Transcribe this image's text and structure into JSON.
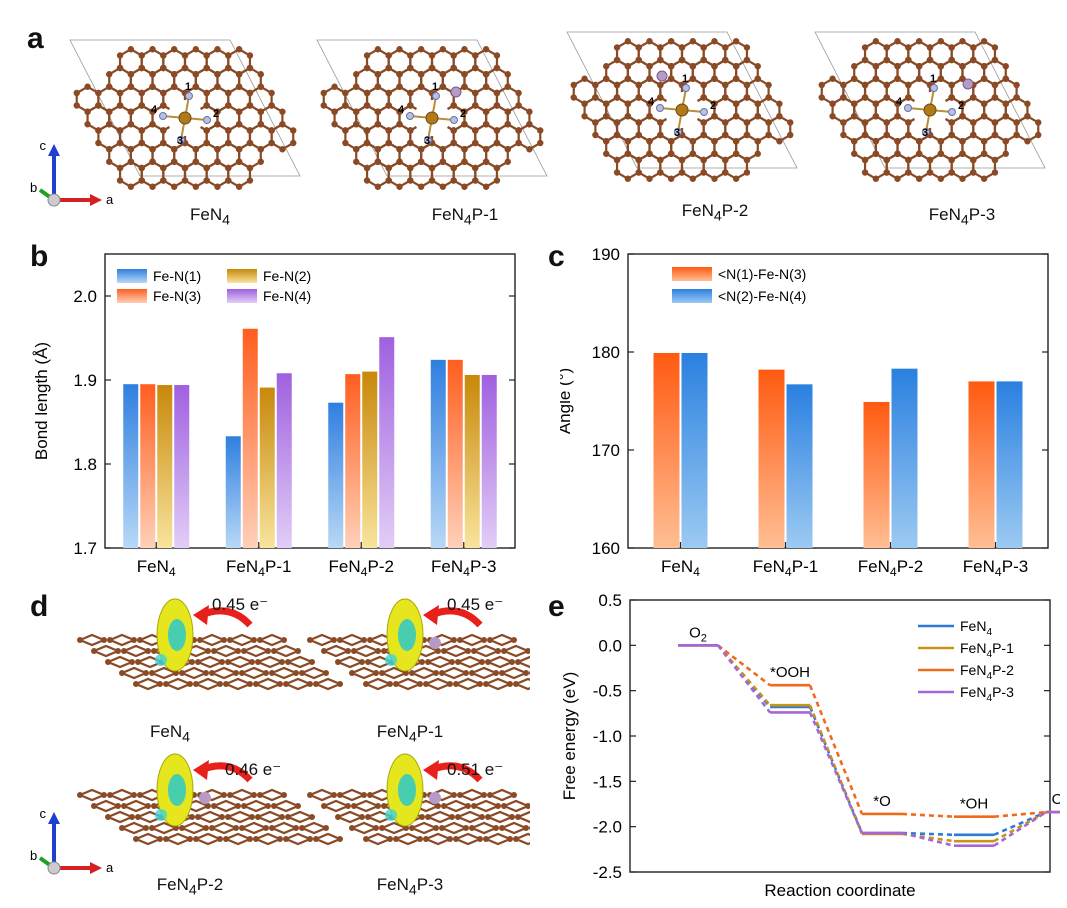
{
  "panels": {
    "a": "a",
    "b": "b",
    "c": "c",
    "d": "d",
    "e": "e"
  },
  "axes_triad": {
    "c": "c",
    "b": "b",
    "a": "a"
  },
  "panel_a": {
    "structures": [
      {
        "name": "FeN4",
        "base": "FeN",
        "sub": "4",
        "suffix": ""
      },
      {
        "name": "FeN4P-1",
        "base": "FeN",
        "sub": "4",
        "suffix": "P-1"
      },
      {
        "name": "FeN4P-2",
        "base": "FeN",
        "sub": "4",
        "suffix": "P-2"
      },
      {
        "name": "FeN4P-3",
        "base": "FeN",
        "sub": "4",
        "suffix": "P-3"
      }
    ],
    "site_numbers": [
      "1",
      "2",
      "3",
      "4"
    ]
  },
  "panel_d": {
    "items": [
      {
        "name": "FeN4",
        "base": "FeN",
        "sub": "4",
        "suffix": "",
        "charge": "0.45 e⁻"
      },
      {
        "name": "FeN4P-1",
        "base": "FeN",
        "sub": "4",
        "suffix": "P-1",
        "charge": "0.45 e⁻"
      },
      {
        "name": "FeN4P-2",
        "base": "FeN",
        "sub": "4",
        "suffix": "P-2",
        "charge": "0.46 e⁻"
      },
      {
        "name": "FeN4P-3",
        "base": "FeN",
        "sub": "4",
        "suffix": "P-3",
        "charge": "0.51 e⁻"
      }
    ]
  },
  "colors": {
    "carbon": "#8a4a25",
    "nitrogen": "#b8bfe0",
    "iron": "#b07a18",
    "phosphorus": "#b79bc7"
  },
  "chart_data": [
    {
      "id": "b",
      "type": "bar",
      "ylabel": "Bond length (Å)",
      "ylim": [
        1.7,
        2.05
      ],
      "yticks": [
        "1.7",
        "1.8",
        "1.9",
        "2.0"
      ],
      "categories": [
        {
          "base": "FeN",
          "sub": "4",
          "suffix": ""
        },
        {
          "base": "FeN",
          "sub": "4",
          "suffix": "P-1"
        },
        {
          "base": "FeN",
          "sub": "4",
          "suffix": "P-2"
        },
        {
          "base": "FeN",
          "sub": "4",
          "suffix": "P-3"
        }
      ],
      "series": [
        {
          "name": "Fe-N(1)",
          "top": "#2f7fe0",
          "bottom": "#b8d8f6",
          "values": [
            1.895,
            1.833,
            1.873,
            1.924
          ]
        },
        {
          "name": "Fe-N(3)",
          "top": "#ff5e1f",
          "bottom": "#ffd0b8",
          "values": [
            1.895,
            1.961,
            1.907,
            1.924
          ]
        },
        {
          "name": "Fe-N(2)",
          "top": "#c8880a",
          "bottom": "#f8e49c",
          "values": [
            1.894,
            1.891,
            1.91,
            1.906
          ]
        },
        {
          "name": "Fe-N(4)",
          "top": "#a060e0",
          "bottom": "#e2cdf6",
          "values": [
            1.894,
            1.908,
            1.951,
            1.906
          ]
        }
      ],
      "legend_order": [
        "Fe-N(1)",
        "Fe-N(2)",
        "Fe-N(3)",
        "Fe-N(4)"
      ]
    },
    {
      "id": "c",
      "type": "bar",
      "ylabel": "Angle (°)",
      "ylim": [
        160,
        190
      ],
      "yticks": [
        "160",
        "170",
        "180",
        "190"
      ],
      "categories": [
        {
          "base": "FeN",
          "sub": "4",
          "suffix": ""
        },
        {
          "base": "FeN",
          "sub": "4",
          "suffix": "P-1"
        },
        {
          "base": "FeN",
          "sub": "4",
          "suffix": "P-2"
        },
        {
          "base": "FeN",
          "sub": "4",
          "suffix": "P-3"
        }
      ],
      "series": [
        {
          "name": "<N(1)-Fe-N(3)",
          "top": "#ff5a10",
          "bottom": "#ffbe94",
          "values": [
            179.9,
            178.2,
            174.9,
            177.0
          ]
        },
        {
          "name": "<N(2)-Fe-N(4)",
          "top": "#2a80e0",
          "bottom": "#9ccaf2",
          "values": [
            179.9,
            176.7,
            178.3,
            177.0
          ]
        }
      ]
    },
    {
      "id": "e",
      "type": "line",
      "ylabel": "Free energy (eV)",
      "xlabel": "Reaction coordinate",
      "ylim": [
        -2.5,
        0.5
      ],
      "yticks": [
        "-2.5",
        "-2.0",
        "-1.5",
        "-1.0",
        "-0.5",
        "0.0",
        "0.5"
      ],
      "states": [
        {
          "base": "O",
          "sub": "2",
          "sup": ""
        },
        {
          "base": "*OOH",
          "sub": "",
          "sup": ""
        },
        {
          "base": "*O",
          "sub": "",
          "sup": ""
        },
        {
          "base": "*OH",
          "sub": "",
          "sup": ""
        },
        {
          "base": "OH",
          "sub": "",
          "sup": "−"
        }
      ],
      "series": [
        {
          "name": "FeN4",
          "base": "FeN",
          "sub": "4",
          "suffix": "",
          "color": "#2b7bd8",
          "values": [
            0.0,
            -0.68,
            -2.07,
            -2.09,
            -1.84
          ]
        },
        {
          "name": "FeN4P-1",
          "base": "FeN",
          "sub": "4",
          "suffix": "P-1",
          "color": "#c99418",
          "values": [
            0.0,
            -0.66,
            -2.08,
            -2.16,
            -1.84
          ]
        },
        {
          "name": "FeN4P-2",
          "base": "FeN",
          "sub": "4",
          "suffix": "P-2",
          "color": "#f06a1c",
          "values": [
            0.0,
            -0.44,
            -1.86,
            -1.89,
            -1.84
          ]
        },
        {
          "name": "FeN4P-3",
          "base": "FeN",
          "sub": "4",
          "suffix": "P-3",
          "color": "#a666d9",
          "values": [
            0.0,
            -0.74,
            -2.07,
            -2.21,
            -1.84
          ]
        }
      ]
    }
  ]
}
